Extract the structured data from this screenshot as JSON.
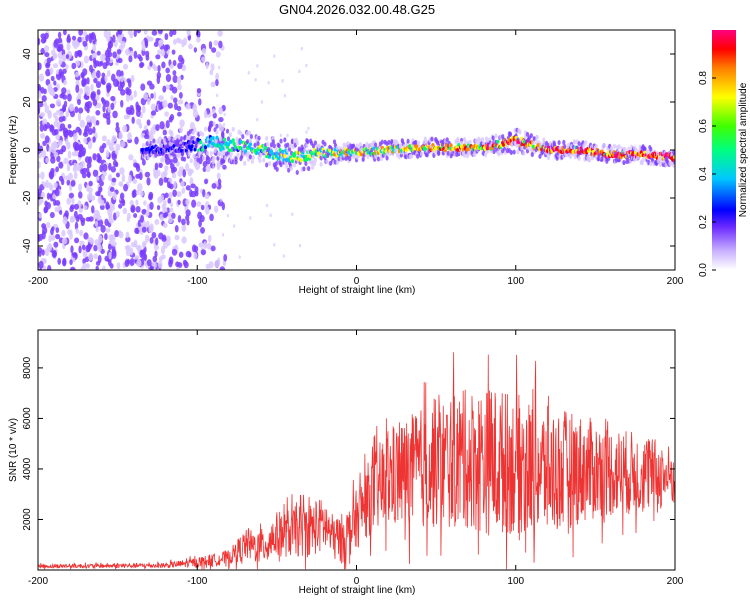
{
  "title": "GN04.2026.032.00.48.G25",
  "chart_data": [
    {
      "type": "heatmap",
      "xlabel": "Height of straight line (km)",
      "ylabel": "Frequency (Hz)",
      "xlim": [
        -200,
        200
      ],
      "ylim": [
        -50,
        50
      ],
      "xticks": [
        "-200",
        "-100",
        "0",
        "100",
        "200"
      ],
      "yticks": [
        "-40",
        "-20",
        "0",
        "20",
        "40"
      ],
      "colorbar": {
        "label": "Normalized spectral amplitude",
        "range": [
          0,
          1
        ],
        "ticks": [
          "0.0",
          "0.2",
          "0.4",
          "0.6",
          "0.8"
        ]
      },
      "ridge": {
        "x": [
          -130,
          -110,
          -100,
          -90,
          -80,
          -60,
          -40,
          -20,
          0,
          20,
          40,
          60,
          80,
          100,
          120,
          140,
          160,
          180,
          200
        ],
        "frequency_hz": [
          0,
          1,
          2,
          3,
          2,
          0,
          -3,
          -1,
          -1,
          0,
          1,
          1,
          1,
          4,
          0,
          0,
          -2,
          -2,
          -3
        ],
        "width_hz": [
          3,
          4,
          6,
          7,
          6,
          5,
          6,
          4,
          3,
          3,
          3,
          3,
          3,
          4,
          3,
          3,
          3,
          3,
          3
        ]
      },
      "noise_region_x": [
        -200,
        -90
      ],
      "colors": [
        "#ffffff",
        "#d9c8ff",
        "#7a3cff",
        "#0000ff",
        "#00c8ff",
        "#00ff66",
        "#ffff00",
        "#ff8800",
        "#ff0000",
        "#ff0080"
      ]
    },
    {
      "type": "line",
      "xlabel": "Height of straight line (km)",
      "ylabel": "SNR (10 * v/v)",
      "xlim": [
        -200,
        200
      ],
      "ylim": [
        0,
        9500
      ],
      "xticks": [
        "-200",
        "-100",
        "0",
        "100",
        "200"
      ],
      "yticks": [
        "2000",
        "4000",
        "6000",
        "8000"
      ],
      "line_color": "#ee3333",
      "envelope": {
        "x": [
          -200,
          -120,
          -100,
          -80,
          -70,
          -60,
          -50,
          -40,
          -30,
          -20,
          -15,
          -10,
          -5,
          0,
          5,
          10,
          20,
          30,
          50,
          70,
          85,
          100,
          120,
          140,
          160,
          180,
          200
        ],
        "mean": [
          150,
          180,
          300,
          500,
          1000,
          900,
          1400,
          1500,
          1600,
          1800,
          1300,
          1200,
          1500,
          2000,
          2600,
          3000,
          3600,
          3800,
          4200,
          4400,
          4300,
          4200,
          3900,
          4000,
          3900,
          3800,
          3700
        ],
        "spread": [
          80,
          100,
          200,
          300,
          600,
          700,
          900,
          1000,
          1100,
          1100,
          900,
          1000,
          1000,
          1200,
          1400,
          1600,
          2000,
          2200,
          2600,
          2800,
          3000,
          2800,
          2600,
          2200,
          1800,
          1600,
          1200
        ]
      }
    }
  ]
}
